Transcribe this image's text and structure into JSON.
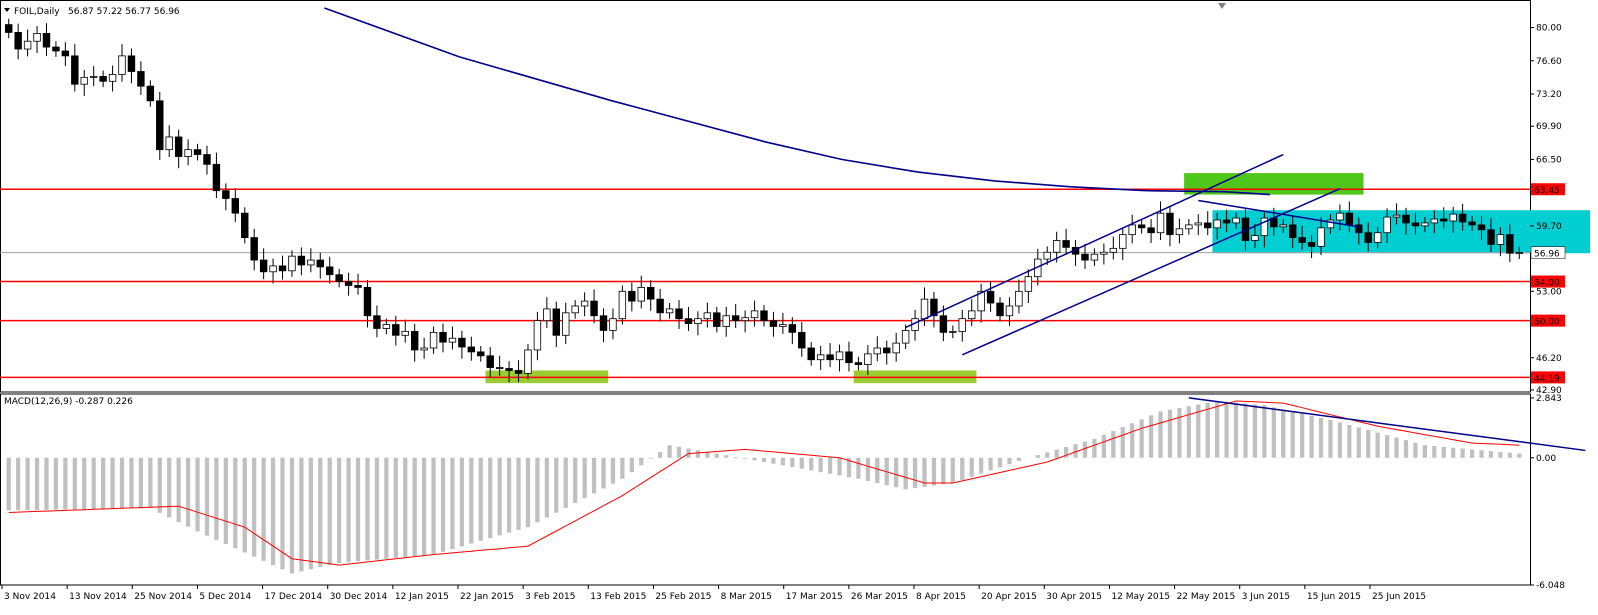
{
  "header": {
    "symbol_title": "FOIL,Daily",
    "ohlc_text": "56.87 57.22 56.77 56.96",
    "macd_title": "MACD(12,26,9) -0.287 0.226"
  },
  "colors": {
    "support_line": "#ff0000",
    "moving_average": "#00008b",
    "channel": "#00008b",
    "signal_line": "#ff0000",
    "histogram": "#c0c0c0",
    "highlight_green": "#4fc61a",
    "highlight_lime": "#9acd32",
    "highlight_cyan": "#00ced1",
    "price_label_bg": "#ff0000"
  },
  "chart_data": [
    {
      "type": "candlestick",
      "title": "FOIL,Daily",
      "ylim": [
        42.9,
        82.0
      ],
      "y_ticks": [
        "80.00",
        "76.60",
        "73.20",
        "69.90",
        "66.50",
        "63.45",
        "59.70",
        "56.96",
        "54.00",
        "53.00",
        "50.00",
        "46.20",
        "44.19",
        "42.90"
      ],
      "x_ticks": [
        "3 Nov 2014",
        "13 Nov 2014",
        "25 Nov 2014",
        "5 Dec 2014",
        "17 Dec 2014",
        "30 Dec 2014",
        "12 Jan 2015",
        "22 Jan 2015",
        "3 Feb 2015",
        "13 Feb 2015",
        "25 Feb 2015",
        "8 Mar 2015",
        "17 Mar 2015",
        "26 Mar 2015",
        "8 Apr 2015",
        "20 Apr 2015",
        "30 Apr 2015",
        "12 May 2015",
        "22 May 2015",
        "3 Jun 2015",
        "15 Jun 2015",
        "25 Jun 2015"
      ],
      "horizontal_levels": [
        63.45,
        54.0,
        50.0,
        44.19
      ],
      "current_price": 56.96,
      "last_bar": {
        "open": 56.87,
        "high": 57.22,
        "low": 56.77,
        "close": 56.96
      },
      "close_series": [
        79.5,
        77.8,
        78.6,
        79.4,
        78.0,
        77.6,
        77.1,
        74.2,
        74.9,
        75.0,
        74.5,
        75.2,
        77.1,
        75.5,
        74.0,
        72.5,
        67.5,
        68.8,
        66.8,
        67.5,
        67.0,
        66.0,
        63.3,
        62.5,
        61.0,
        58.5,
        56.2,
        55.0,
        55.6,
        55.1,
        56.6,
        55.7,
        56.2,
        55.5,
        54.7,
        54.0,
        53.6,
        53.4,
        50.5,
        49.2,
        49.6,
        48.5,
        48.9,
        47.0,
        47.2,
        48.8,
        47.8,
        48.2,
        47.3,
        46.8,
        46.4,
        45.2,
        45.1,
        44.9,
        44.6,
        47.0,
        50.0,
        51.2,
        48.5,
        50.8,
        51.5,
        52.0,
        50.5,
        49.0,
        50.2,
        53.0,
        52.0,
        53.4,
        52.2,
        50.8,
        51.2,
        50.2,
        49.7,
        50.2,
        50.8,
        49.4,
        50.5,
        50.0,
        50.3,
        51.0,
        50.0,
        49.4,
        49.6,
        48.8,
        47.2,
        46.0,
        46.5,
        46.0,
        46.8,
        45.7,
        45.5,
        46.6,
        47.2,
        46.7,
        47.7,
        49.0,
        50.2,
        52.2,
        50.5,
        48.8,
        48.9,
        50.2,
        51.0,
        53.0,
        51.8,
        50.5,
        51.5,
        53.0,
        54.5,
        56.3,
        57.0,
        58.2,
        57.5,
        56.8,
        56.2,
        56.8,
        57.0,
        57.4,
        58.8,
        59.8,
        59.5,
        59.0,
        61.0,
        58.8,
        59.4,
        59.8,
        60.0,
        59.5,
        60.3,
        60.0,
        60.5,
        58.2,
        58.7,
        60.5,
        59.6,
        59.8,
        58.5,
        58.0,
        57.6,
        59.5,
        60.3,
        61.0,
        59.8,
        59.0,
        58.0,
        59.0,
        60.6,
        60.8,
        60.0,
        59.7,
        60.0,
        60.4,
        60.2,
        60.9,
        60.1,
        59.8,
        59.3,
        57.8,
        58.8,
        56.9,
        56.96
      ],
      "moving_average_curve": [
        [
          0.212,
          82.0
        ],
        [
          0.3,
          77.0
        ],
        [
          0.4,
          72.5
        ],
        [
          0.5,
          68.3
        ],
        [
          0.55,
          66.5
        ],
        [
          0.6,
          65.2
        ],
        [
          0.65,
          64.3
        ],
        [
          0.7,
          63.7
        ],
        [
          0.75,
          63.3
        ],
        [
          0.8,
          63.2
        ],
        [
          0.83,
          62.9
        ]
      ],
      "highlight_zones": [
        {
          "color_key": "highlight_green",
          "i0": 125,
          "i1": 143,
          "y0": 62.9,
          "y1": 65.1
        },
        {
          "color_key": "highlight_lime",
          "i0": 51,
          "i1": 63,
          "y0": 43.6,
          "y1": 44.9
        },
        {
          "color_key": "highlight_lime",
          "i0": 90,
          "i1": 102,
          "y0": 43.6,
          "y1": 44.9
        },
        {
          "color_key": "highlight_cyan",
          "i0": 128,
          "i1": 167,
          "y0": 56.9,
          "y1": 61.3
        }
      ],
      "trend_lines": [
        {
          "from": [
            95,
            49.3
          ],
          "to": [
            135,
            67.0
          ]
        },
        {
          "from": [
            101,
            46.5
          ],
          "to": [
            141,
            63.5
          ]
        },
        {
          "from": [
            126,
            62.3
          ],
          "to": [
            143,
            59.6
          ]
        }
      ]
    },
    {
      "type": "bar+line",
      "title": "MACD(12,26,9) -0.287 0.226",
      "ylim": [
        -6.048,
        2.843
      ],
      "y_ticks": [
        "2.843",
        "0.00",
        "-6.048"
      ],
      "histogram_anchors": [
        [
          0,
          -2.5
        ],
        [
          15,
          -2.4
        ],
        [
          20,
          -3.5
        ],
        [
          30,
          -5.5
        ],
        [
          35,
          -5.0
        ],
        [
          45,
          -4.6
        ],
        [
          55,
          -3.3
        ],
        [
          65,
          -1.0
        ],
        [
          70,
          0.6
        ],
        [
          75,
          0.2
        ],
        [
          80,
          -0.2
        ],
        [
          90,
          -1.0
        ],
        [
          95,
          -1.5
        ],
        [
          100,
          -1.2
        ],
        [
          108,
          0.0
        ],
        [
          115,
          0.9
        ],
        [
          122,
          2.2
        ],
        [
          128,
          2.7
        ],
        [
          133,
          2.5
        ],
        [
          140,
          1.8
        ],
        [
          150,
          0.6
        ],
        [
          160,
          0.2
        ],
        [
          166,
          -0.4
        ],
        [
          167,
          -0.287
        ]
      ],
      "signal_anchors": [
        [
          0,
          -2.6
        ],
        [
          18,
          -2.3
        ],
        [
          25,
          -3.3
        ],
        [
          30,
          -4.8
        ],
        [
          35,
          -5.1
        ],
        [
          45,
          -4.6
        ],
        [
          55,
          -4.2
        ],
        [
          65,
          -1.8
        ],
        [
          72,
          0.2
        ],
        [
          78,
          0.4
        ],
        [
          88,
          0.0
        ],
        [
          97,
          -1.2
        ],
        [
          100,
          -1.2
        ],
        [
          110,
          -0.2
        ],
        [
          120,
          1.4
        ],
        [
          130,
          2.7
        ],
        [
          135,
          2.6
        ],
        [
          145,
          1.5
        ],
        [
          155,
          0.7
        ],
        [
          165,
          0.5
        ],
        [
          167,
          0.226
        ]
      ],
      "trend_lines": [
        {
          "from": [
            125,
            2.85
          ],
          "to": [
            167,
            0.35
          ]
        }
      ]
    }
  ]
}
